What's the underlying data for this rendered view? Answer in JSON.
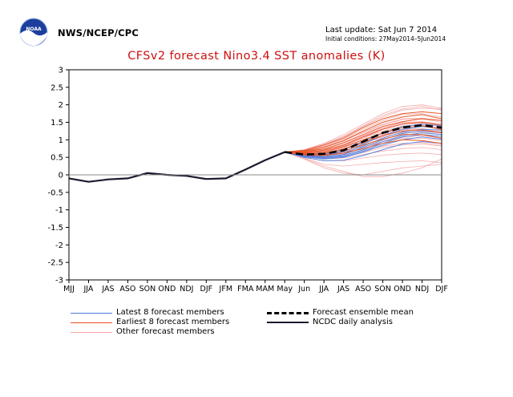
{
  "header": {
    "agency": "NWS/NCEP/CPC",
    "last_update": "Last update: Sat Jun 7 2014",
    "initial_conditions": "Initial conditions: 27May2014–5Jun2014",
    "logo_text": "NOAA"
  },
  "chart_data": {
    "type": "line",
    "title": "CFSv2 forecast Nino3.4 SST anomalies (K)",
    "xlabel": "",
    "ylabel": "",
    "categories": [
      "MJJ",
      "JJA",
      "JAS",
      "ASO",
      "SON",
      "OND",
      "NDJ",
      "DJF",
      "JFM",
      "FMA",
      "MAM",
      "May",
      "Jun",
      "JJA",
      "JAS",
      "ASO",
      "SON",
      "OND",
      "NDJ",
      "DJF"
    ],
    "ylim": [
      -3,
      3
    ],
    "yticks": [
      -3,
      -2.5,
      -2,
      -1.5,
      -1,
      -0.5,
      0,
      0.5,
      1,
      1.5,
      2,
      2.5,
      3
    ],
    "grid": false,
    "zero_line": true,
    "series": [
      {
        "name": "NCDC daily analysis",
        "color": "#1a1a2e",
        "style": "solid-thick",
        "values": [
          -0.1,
          -0.2,
          -0.13,
          -0.1,
          0.05,
          0.0,
          -0.03,
          -0.12,
          -0.1,
          0.15,
          0.42,
          0.65,
          null,
          null,
          null,
          null,
          null,
          null,
          null,
          null
        ]
      },
      {
        "name": "Forecast ensemble mean",
        "color": "#000000",
        "style": "dashed-thick",
        "values": [
          null,
          null,
          null,
          null,
          null,
          null,
          null,
          null,
          null,
          null,
          null,
          0.65,
          0.58,
          0.6,
          0.7,
          0.95,
          1.2,
          1.35,
          1.42,
          1.35
        ]
      },
      {
        "name": "Earliest 8 forecast members",
        "color": "#e8501e",
        "style": "solid",
        "members": [
          [
            0.65,
            0.7,
            0.85,
            1.05,
            1.35,
            1.6,
            1.75,
            1.8,
            1.75
          ],
          [
            0.65,
            0.68,
            0.78,
            0.98,
            1.25,
            1.5,
            1.65,
            1.72,
            1.6
          ],
          [
            0.65,
            0.66,
            0.74,
            0.92,
            1.15,
            1.38,
            1.52,
            1.6,
            1.55
          ],
          [
            0.65,
            0.64,
            0.7,
            0.85,
            1.08,
            1.3,
            1.45,
            1.5,
            1.42
          ],
          [
            0.65,
            0.62,
            0.66,
            0.8,
            1.0,
            1.2,
            1.35,
            1.4,
            1.3
          ],
          [
            0.65,
            0.6,
            0.62,
            0.74,
            0.92,
            1.12,
            1.25,
            1.28,
            1.2
          ],
          [
            0.65,
            0.58,
            0.58,
            0.68,
            0.85,
            1.02,
            1.15,
            1.15,
            1.05
          ],
          [
            0.65,
            0.56,
            0.55,
            0.62,
            0.75,
            0.9,
            1.0,
            0.98,
            0.9
          ]
        ]
      },
      {
        "name": "Latest 8 forecast members",
        "color": "#4a7de0",
        "style": "solid",
        "members": [
          [
            0.65,
            0.6,
            0.6,
            0.72,
            0.95,
            1.2,
            1.38,
            1.45,
            1.4
          ],
          [
            0.65,
            0.55,
            0.5,
            0.58,
            0.78,
            1.0,
            1.18,
            1.25,
            1.2
          ],
          [
            0.65,
            0.52,
            0.45,
            0.5,
            0.65,
            0.85,
            1.0,
            1.08,
            1.02
          ],
          [
            0.65,
            0.5,
            0.4,
            0.42,
            0.55,
            0.72,
            0.88,
            0.95,
            0.9
          ],
          [
            0.65,
            0.55,
            0.52,
            0.62,
            0.82,
            1.05,
            1.22,
            1.3,
            1.28
          ],
          [
            0.65,
            0.58,
            0.55,
            0.66,
            0.88,
            1.12,
            1.3,
            1.38,
            1.32
          ],
          [
            0.65,
            0.53,
            0.47,
            0.52,
            0.68,
            0.9,
            1.08,
            1.15,
            1.1
          ],
          [
            0.65,
            0.56,
            0.5,
            0.55,
            0.72,
            0.95,
            1.12,
            1.2,
            1.15
          ]
        ]
      },
      {
        "name": "Other forecast members",
        "color": "#f2a3a3",
        "style": "thin",
        "members": [
          [
            0.65,
            0.72,
            0.9,
            1.15,
            1.45,
            1.75,
            1.95,
            2.0,
            1.9
          ],
          [
            0.65,
            0.7,
            0.88,
            1.1,
            1.4,
            1.7,
            1.88,
            1.95,
            1.85
          ],
          [
            0.65,
            0.68,
            0.82,
            1.02,
            1.3,
            1.55,
            1.72,
            1.75,
            1.65
          ],
          [
            0.65,
            0.66,
            0.78,
            0.96,
            1.22,
            1.45,
            1.6,
            1.62,
            1.55
          ],
          [
            0.65,
            0.64,
            0.72,
            0.9,
            1.12,
            1.35,
            1.5,
            1.52,
            1.45
          ],
          [
            0.65,
            0.62,
            0.68,
            0.84,
            1.05,
            1.25,
            1.4,
            1.42,
            1.35
          ],
          [
            0.65,
            0.6,
            0.64,
            0.78,
            0.98,
            1.18,
            1.3,
            1.32,
            1.25
          ],
          [
            0.65,
            0.58,
            0.6,
            0.72,
            0.9,
            1.08,
            1.2,
            1.22,
            1.15
          ],
          [
            0.65,
            0.56,
            0.56,
            0.65,
            0.8,
            0.95,
            1.05,
            1.05,
            0.98
          ],
          [
            0.65,
            0.54,
            0.5,
            0.56,
            0.7,
            0.82,
            0.9,
            0.92,
            0.85
          ],
          [
            0.65,
            0.52,
            0.45,
            0.48,
            0.58,
            0.68,
            0.75,
            0.78,
            0.72
          ],
          [
            0.65,
            0.5,
            0.4,
            0.4,
            0.48,
            0.56,
            0.6,
            0.62,
            0.58
          ],
          [
            0.65,
            0.48,
            0.3,
            0.25,
            0.3,
            0.35,
            0.38,
            0.4,
            0.35
          ],
          [
            0.65,
            0.45,
            0.2,
            0.05,
            0.0,
            0.1,
            0.2,
            0.25,
            0.3
          ],
          [
            0.65,
            0.46,
            0.25,
            0.1,
            -0.05,
            -0.05,
            0.05,
            0.2,
            0.45
          ],
          [
            0.65,
            0.7,
            0.85,
            1.08,
            1.38,
            1.65,
            1.85,
            1.9,
            1.88
          ],
          [
            0.65,
            0.62,
            0.66,
            0.82,
            1.05,
            1.3,
            1.45,
            1.48,
            1.4
          ],
          [
            0.65,
            0.57,
            0.55,
            0.6,
            0.75,
            0.95,
            1.08,
            1.12,
            1.05
          ],
          [
            0.65,
            0.53,
            0.48,
            0.52,
            0.64,
            0.78,
            0.85,
            0.88,
            0.82
          ],
          [
            0.65,
            0.68,
            0.8,
            0.98,
            1.2,
            1.42,
            1.58,
            1.6,
            1.5
          ],
          [
            0.65,
            0.64,
            0.7,
            0.86,
            1.1,
            1.32,
            1.48,
            1.5,
            1.42
          ],
          [
            0.65,
            0.6,
            0.62,
            0.75,
            0.94,
            1.15,
            1.28,
            1.3,
            1.22
          ]
        ]
      }
    ]
  },
  "legend": {
    "latest": "Latest 8 forecast members",
    "earliest": "Earliest 8 forecast members",
    "other": "Other forecast members",
    "mean": "Forecast ensemble mean",
    "analysis": "NCDC daily analysis"
  },
  "colors": {
    "title": "#cc1111",
    "latest": "#4a7de0",
    "earliest": "#e8501e",
    "other": "#f2a3a3",
    "mean": "#000000",
    "analysis": "#1a1a2e"
  }
}
